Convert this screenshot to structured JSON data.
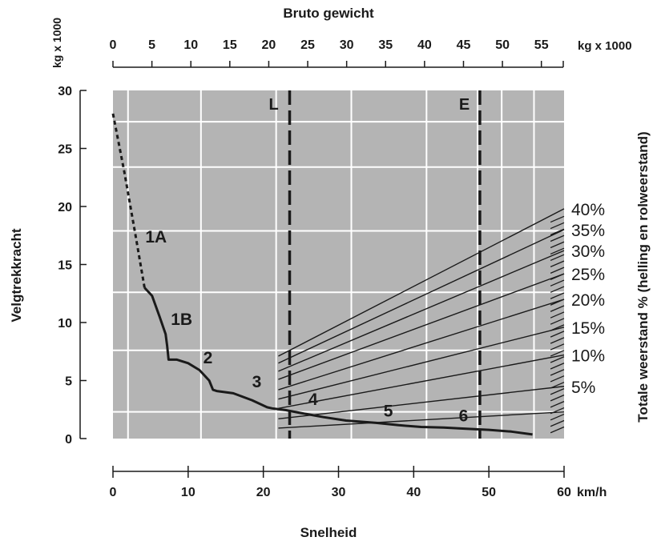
{
  "chart_data": {
    "type": "line",
    "title": "Bruto gewicht",
    "xlabel": "Snelheid",
    "ylabel": "Velgtrekkracht",
    "y2label": "Totale weerstand % (helling en rolweerstand)",
    "top_unit": "kg x 1000",
    "left_unit": "kg x 1000",
    "bottom_unit": "km/h",
    "xlim": [
      0,
      60
    ],
    "ylim": [
      0,
      30
    ],
    "x_ticks": [
      0,
      10,
      20,
      30,
      40,
      50,
      60
    ],
    "y_ticks": [
      0,
      5,
      10,
      15,
      20,
      25,
      30
    ],
    "top_ticks": [
      0,
      5,
      10,
      15,
      20,
      25,
      30,
      35,
      40,
      45,
      50,
      55
    ],
    "top_range": [
      0,
      57.5
    ],
    "grid": true,
    "dashed_curve": {
      "name": "1A",
      "x": [
        0,
        1.5,
        3,
        4.2
      ],
      "y": [
        28,
        23,
        17.5,
        13
      ]
    },
    "solid_curve": {
      "x": [
        4.2,
        5.2,
        6.2,
        7,
        7.2,
        7.4,
        8.5,
        10,
        11.5,
        12.8,
        13.3,
        13.8,
        16,
        18.5,
        20.5,
        21.2,
        23,
        25,
        28,
        31,
        35,
        38,
        41,
        44,
        47,
        50,
        53,
        55.8
      ],
      "y": [
        13,
        12.3,
        10.5,
        9,
        8,
        6.8,
        6.8,
        6.5,
        5.9,
        5,
        4.2,
        4.1,
        3.9,
        3.3,
        2.7,
        2.6,
        2.45,
        2.2,
        1.85,
        1.55,
        1.35,
        1.15,
        1.0,
        0.95,
        0.85,
        0.75,
        0.6,
        0.35
      ],
      "gears": [
        {
          "label": "1A",
          "x": 4.3,
          "y": 16.9
        },
        {
          "label": "1B",
          "x": 7.7,
          "y": 9.8
        },
        {
          "label": "2",
          "x": 12,
          "y": 6.5
        },
        {
          "label": "3",
          "x": 18.5,
          "y": 4.4
        },
        {
          "label": "4",
          "x": 26,
          "y": 2.9
        },
        {
          "label": "5",
          "x": 36,
          "y": 1.9
        },
        {
          "label": "6",
          "x": 46,
          "y": 1.5
        }
      ]
    },
    "resistance_lines": [
      {
        "label": "40%",
        "y_start": 7.1,
        "y_end": 19.8
      },
      {
        "label": "35%",
        "y_start": 6.5,
        "y_end": 18.0
      },
      {
        "label": "30%",
        "y_start": 5.8,
        "y_end": 16.2
      },
      {
        "label": "25%",
        "y_start": 5.1,
        "y_end": 14.2
      },
      {
        "label": "20%",
        "y_start": 4.2,
        "y_end": 12.0
      },
      {
        "label": "15%",
        "y_start": 3.4,
        "y_end": 9.6
      },
      {
        "label": "10%",
        "y_start": 2.6,
        "y_end": 7.2
      },
      {
        "label": "5%",
        "y_start": 1.7,
        "y_end": 4.5
      },
      {
        "label": "",
        "y_start": 0.9,
        "y_end": 2.3
      }
    ],
    "resistance_x_start": 22,
    "resistance_x_end": 60,
    "vertical_markers": [
      {
        "label": "L",
        "x": 23.5
      },
      {
        "label": "E",
        "x": 48.8
      }
    ]
  }
}
